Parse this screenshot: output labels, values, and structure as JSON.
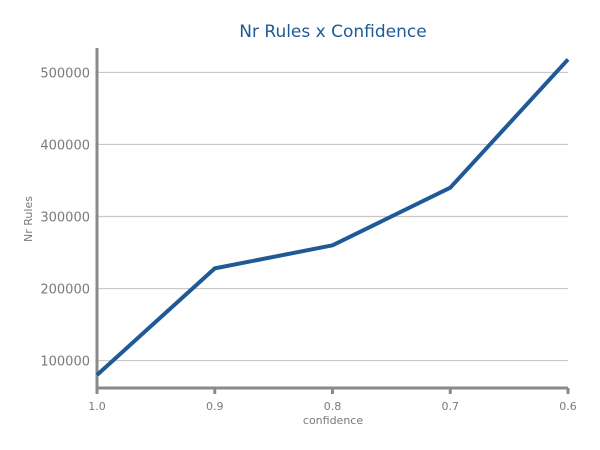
{
  "chart_data": {
    "type": "line",
    "title": "Nr Rules x Confidence",
    "xlabel": "confidence",
    "ylabel": "Nr Rules",
    "categories": [
      "1.0",
      "0.9",
      "0.8",
      "0.7",
      "0.6"
    ],
    "values": [
      80000,
      228000,
      260000,
      340000,
      518000
    ],
    "ylim": [
      55000,
      545000
    ],
    "yticks": [
      "100000",
      "200000",
      "300000",
      "400000",
      "500000"
    ],
    "grid": "horizontal",
    "legend": "none",
    "color": "#1f5a96"
  }
}
